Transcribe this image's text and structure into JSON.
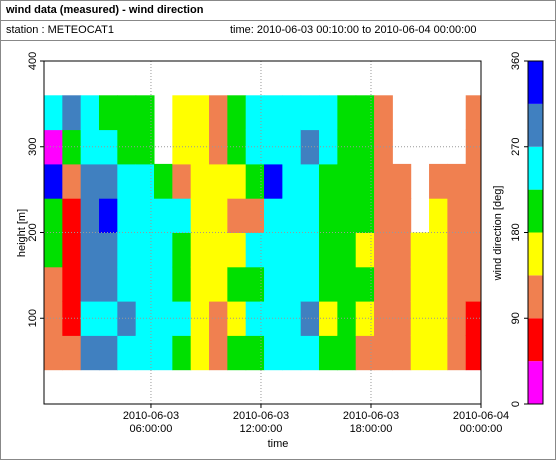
{
  "header": {
    "title": "wind data (measured) - wind direction",
    "station": "station : METEOCAT1",
    "time": "time: 2010-06-03 00:10:00 to 2010-06-04 00:00:00"
  },
  "chart_data": {
    "type": "heatmap",
    "xlabel": "time",
    "ylabel": "height [m]",
    "x": [
      "2010-06-03 00:10:00",
      "2010-06-03 01:10:00",
      "2010-06-03 02:10:00",
      "2010-06-03 03:10:00",
      "2010-06-03 04:10:00",
      "2010-06-03 05:10:00",
      "2010-06-03 06:10:00",
      "2010-06-03 07:10:00",
      "2010-06-03 08:10:00",
      "2010-06-03 09:10:00",
      "2010-06-03 10:10:00",
      "2010-06-03 11:10:00",
      "2010-06-03 12:10:00",
      "2010-06-03 13:10:00",
      "2010-06-03 14:10:00",
      "2010-06-03 15:10:00",
      "2010-06-03 16:10:00",
      "2010-06-03 17:10:00",
      "2010-06-03 18:10:00",
      "2010-06-03 19:10:00",
      "2010-06-03 20:10:00",
      "2010-06-03 21:10:00",
      "2010-06-03 22:10:00",
      "2010-06-03 23:10:00"
    ],
    "y": [
      60,
      100,
      140,
      180,
      220,
      260,
      300,
      340
    ],
    "values": [
      [
        110,
        110,
        110,
        200,
        200,
        340,
        20,
        250
      ],
      [
        110,
        70,
        70,
        70,
        70,
        110,
        200,
        290
      ],
      [
        290,
        250,
        290,
        290,
        290,
        290,
        250,
        250
      ],
      [
        290,
        250,
        290,
        290,
        340,
        290,
        250,
        200
      ],
      [
        250,
        290,
        250,
        250,
        250,
        250,
        200,
        200
      ],
      [
        250,
        250,
        250,
        250,
        250,
        250,
        200,
        200
      ],
      [
        250,
        250,
        250,
        250,
        250,
        200,
        null,
        null
      ],
      [
        200,
        250,
        200,
        200,
        250,
        110,
        160,
        160
      ],
      [
        160,
        160,
        160,
        160,
        160,
        160,
        160,
        160
      ],
      [
        110,
        110,
        160,
        160,
        160,
        160,
        110,
        110
      ],
      [
        200,
        160,
        200,
        160,
        110,
        160,
        200,
        200
      ],
      [
        200,
        250,
        200,
        250,
        110,
        200,
        250,
        250
      ],
      [
        250,
        250,
        250,
        250,
        250,
        340,
        250,
        250
      ],
      [
        250,
        250,
        250,
        250,
        250,
        250,
        250,
        250
      ],
      [
        250,
        290,
        250,
        250,
        250,
        250,
        290,
        250
      ],
      [
        200,
        160,
        200,
        200,
        200,
        200,
        250,
        250
      ],
      [
        200,
        200,
        200,
        200,
        200,
        200,
        200,
        200
      ],
      [
        110,
        160,
        200,
        160,
        200,
        200,
        200,
        200
      ],
      [
        110,
        110,
        110,
        110,
        110,
        110,
        110,
        110
      ],
      [
        110,
        110,
        110,
        110,
        110,
        110,
        null,
        null
      ],
      [
        160,
        160,
        160,
        160,
        null,
        null,
        null,
        null
      ],
      [
        160,
        160,
        160,
        160,
        160,
        110,
        null,
        null
      ],
      [
        110,
        110,
        110,
        110,
        110,
        110,
        null,
        null
      ],
      [
        70,
        70,
        110,
        110,
        110,
        110,
        110,
        110
      ]
    ],
    "xlim": [
      "2010-06-03 00:10:00",
      "2010-06-04 00:00:00"
    ],
    "xticks": [
      "2010-06-03 06:00:00",
      "2010-06-03 12:00:00",
      "2010-06-03 18:00:00",
      "2010-06-04 00:00:00"
    ],
    "ylim": [
      0,
      400
    ],
    "yticks": [
      100,
      200,
      300,
      400
    ],
    "grid": true,
    "colorbar": {
      "label": "wind direction [deg]",
      "bins": [
        0,
        45,
        90,
        135,
        180,
        225,
        270,
        315,
        360
      ],
      "colors": [
        "#ff00ff",
        "#ff0000",
        "#f08050",
        "#ffff00",
        "#00e000",
        "#00ffff",
        "#4080c0",
        "#0000ff"
      ],
      "ticks": [
        0,
        90,
        180,
        270,
        360
      ]
    }
  }
}
